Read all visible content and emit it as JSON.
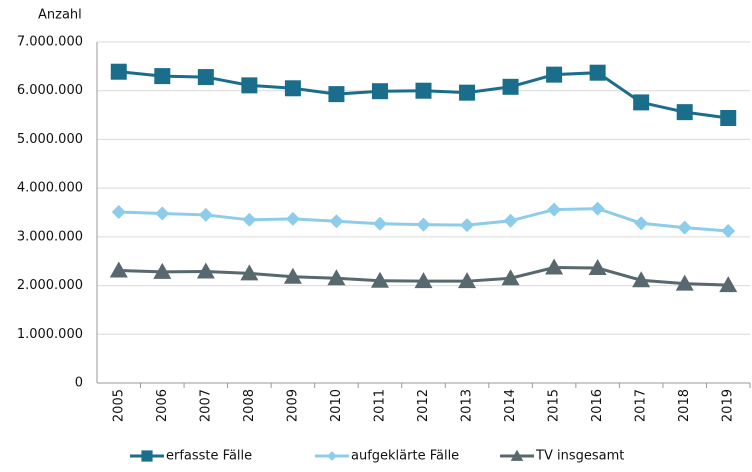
{
  "chart_data": {
    "type": "line",
    "y_label": "Anzahl",
    "categories": [
      "2005",
      "2006",
      "2007",
      "2008",
      "2009",
      "2010",
      "2011",
      "2012",
      "2013",
      "2014",
      "2015",
      "2016",
      "2017",
      "2018",
      "2019"
    ],
    "series": [
      {
        "name": "erfasste Fälle",
        "color": "#1a6e8c",
        "marker": "square",
        "values": [
          6390000,
          6300000,
          6280000,
          6110000,
          6050000,
          5930000,
          5990000,
          6000000,
          5960000,
          6080000,
          6330000,
          6370000,
          5760000,
          5560000,
          5440000
        ]
      },
      {
        "name": "aufgeklärte Fälle",
        "color": "#8dcdeb",
        "marker": "diamond",
        "values": [
          3510000,
          3480000,
          3450000,
          3350000,
          3370000,
          3320000,
          3270000,
          3250000,
          3240000,
          3330000,
          3560000,
          3580000,
          3280000,
          3190000,
          3120000
        ]
      },
      {
        "name": "TV insgesamt",
        "color": "#58686f",
        "marker": "triangle",
        "values": [
          2310000,
          2280000,
          2290000,
          2250000,
          2180000,
          2150000,
          2100000,
          2090000,
          2090000,
          2150000,
          2370000,
          2360000,
          2110000,
          2040000,
          2010000
        ]
      }
    ],
    "ylim": [
      0,
      7000000
    ],
    "yticks": [
      0,
      {
        "value": 1000000,
        "label": "1.000.000"
      },
      {
        "value": 2000000,
        "label": "2.000.000"
      },
      {
        "value": 3000000,
        "label": "3.000.000"
      },
      {
        "value": 4000000,
        "label": "4.000.000"
      },
      {
        "value": 5000000,
        "label": "5.000.000"
      },
      {
        "value": 6000000,
        "label": "6.000.000"
      },
      {
        "value": 7000000,
        "label": "7.000.000"
      }
    ],
    "grid": true,
    "legend": "bottom"
  }
}
